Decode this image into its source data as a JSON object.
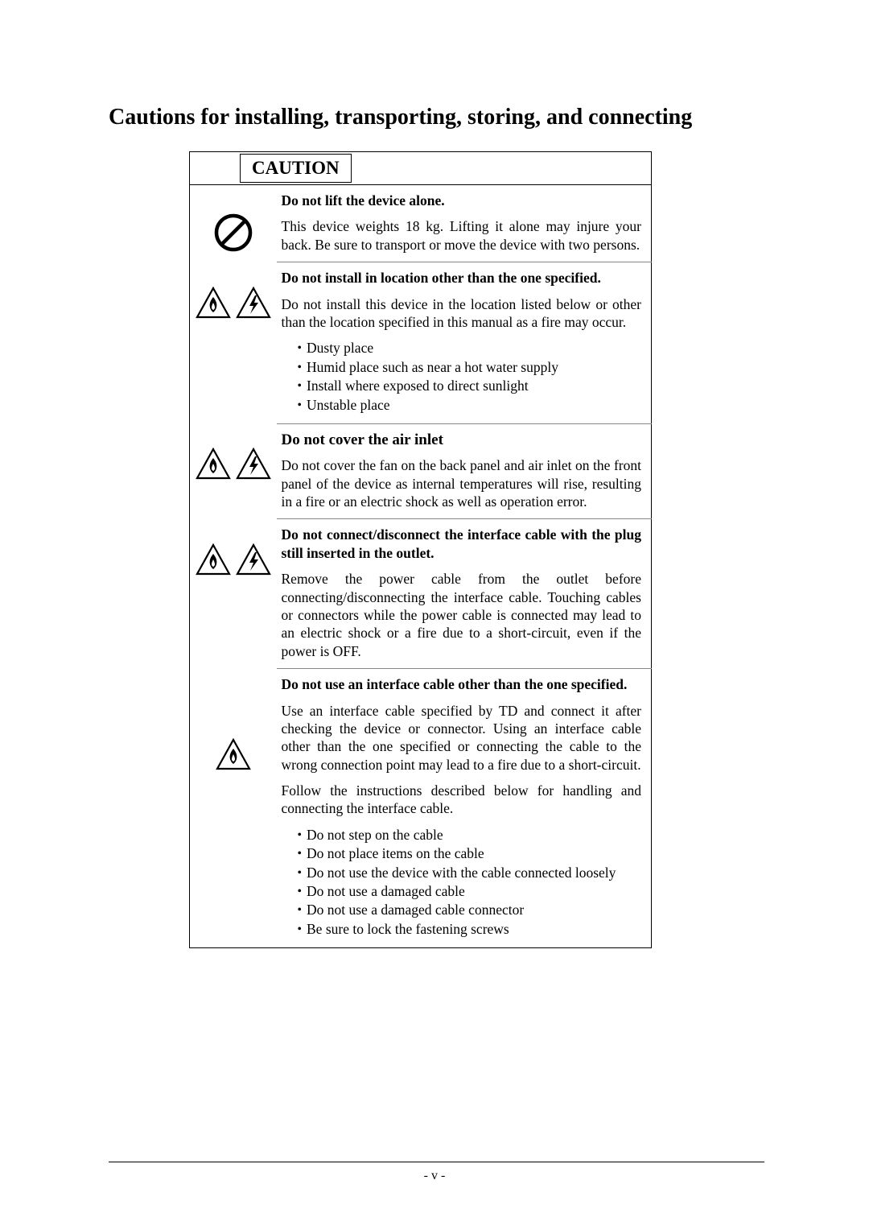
{
  "title": "Cautions for installing, transporting, storing, and connecting",
  "caution_label": "CAUTION",
  "page_number": "- v -",
  "colors": {
    "text": "#000000",
    "bg": "#ffffff",
    "rule": "#000000"
  },
  "icons": {
    "prohibit": "prohibit-icon",
    "fire": "fire-triangle-icon",
    "shock": "shock-triangle-icon"
  },
  "sections": [
    {
      "icons": [
        "prohibit"
      ],
      "heading": "Do not lift the device alone.",
      "heading_style": "bold",
      "paragraphs": [
        {
          "text": "This device weights 18 kg. Lifting it alone may injure your back. Be sure to transport or move the device with two persons.",
          "justify": true
        }
      ]
    },
    {
      "icons": [
        "fire",
        "shock"
      ],
      "heading": "Do not install in location other than the one specified.",
      "heading_style": "bold",
      "paragraphs": [
        {
          "text": "Do not install this device in the location listed below or other than the location specified in this manual as a fire may occur.",
          "justify": true
        }
      ],
      "bullets": [
        "Dusty place",
        "Humid place such as near a hot water supply",
        "Install where exposed to direct sunlight",
        "Unstable place"
      ]
    },
    {
      "icons": [
        "fire",
        "shock"
      ],
      "heading": "Do not cover the air inlet",
      "heading_style": "bold-big",
      "paragraphs": [
        {
          "text": "Do not cover the fan on the back panel and air inlet on the front panel of the device as internal temperatures will rise, resulting in a fire or an electric shock as well as operation error.",
          "justify": true
        }
      ]
    },
    {
      "icons": [
        "fire",
        "shock"
      ],
      "heading": "Do not connect/disconnect the interface cable with the plug still inserted in the outlet.",
      "heading_style": "bold-just",
      "paragraphs": [
        {
          "text": "Remove the power cable from the outlet before connecting/disconnecting the interface cable. Touching cables or connectors while the power cable is connected may lead to an electric shock or a fire due to a short-circuit, even if the power is OFF.",
          "justify": true
        }
      ]
    },
    {
      "icons": [
        "fire"
      ],
      "icons_single": true,
      "heading": "Do not use an interface cable other than the one specified.",
      "heading_style": "bold",
      "paragraphs": [
        {
          "text": "Use an interface cable specified by TD and connect it after checking the device or connector. Using an interface cable other than the one specified or connecting the cable to the wrong connection point may lead to a fire due to a short-circuit.",
          "justify": true
        },
        {
          "text": "Follow the instructions described below for handling and connecting the interface cable.",
          "justify": true
        }
      ],
      "bullets": [
        "Do not step on the cable",
        "Do not place items on the cable",
        "Do not use the device with the cable connected loosely",
        "Do not use a damaged cable",
        "Do not use a damaged cable connector",
        "Be sure to lock the fastening screws"
      ]
    }
  ]
}
